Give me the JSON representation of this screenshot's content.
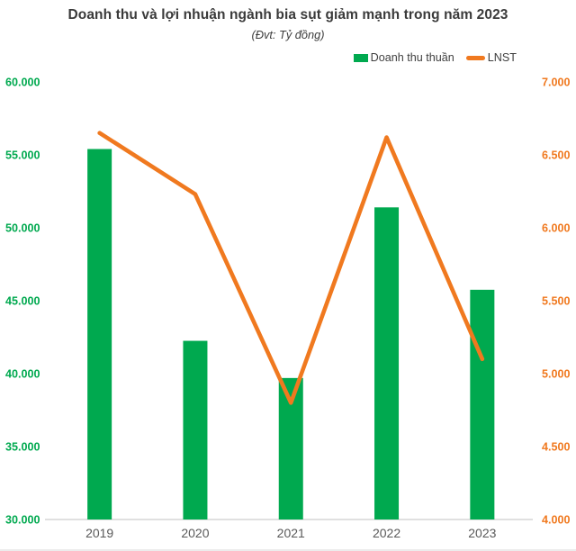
{
  "header": {
    "title": "Doanh thu và lợi nhuận ngành bia sụt giảm mạnh trong năm 2023",
    "subtitle": "(Đvt: Tỷ đồng)"
  },
  "colors": {
    "bar_green": "#00a94f",
    "line_orange": "#f0791f",
    "left_axis_text": "#00a94f",
    "right_axis_text": "#f0791f",
    "x_axis_text": "#595959",
    "axis_line": "#d6d6d6",
    "title_text": "#3a3a3a",
    "background": "#ffffff"
  },
  "chart_data": {
    "type": "combo",
    "title": "Doanh thu và lợi nhuận ngành bia sụt giảm mạnh trong năm 2023",
    "subtitle": "(Đvt: Tỷ đồng)",
    "unit": "Tỷ đồng",
    "categories": [
      "2019",
      "2020",
      "2021",
      "2022",
      "2023"
    ],
    "series": [
      {
        "name": "Doanh thu thuần",
        "chart": "bar",
        "axis": "left",
        "color": "#00a94f",
        "values": [
          55400,
          42250,
          39700,
          51400,
          45750
        ]
      },
      {
        "name": "LNST",
        "chart": "line",
        "axis": "right",
        "color": "#f0791f",
        "values": [
          6650,
          6230,
          4800,
          6620,
          5100
        ]
      }
    ],
    "left_axis": {
      "min": 30000,
      "max": 60000,
      "step": 5000,
      "tick_labels": [
        "30.000",
        "35.000",
        "40.000",
        "45.000",
        "50.000",
        "55.000",
        "60.000"
      ]
    },
    "right_axis": {
      "min": 4000,
      "max": 7000,
      "step": 500,
      "tick_labels": [
        "4.000",
        "4.500",
        "5.000",
        "5.500",
        "6.000",
        "6.500",
        "7.000"
      ]
    },
    "grid": false,
    "legend_position": "top-right"
  }
}
